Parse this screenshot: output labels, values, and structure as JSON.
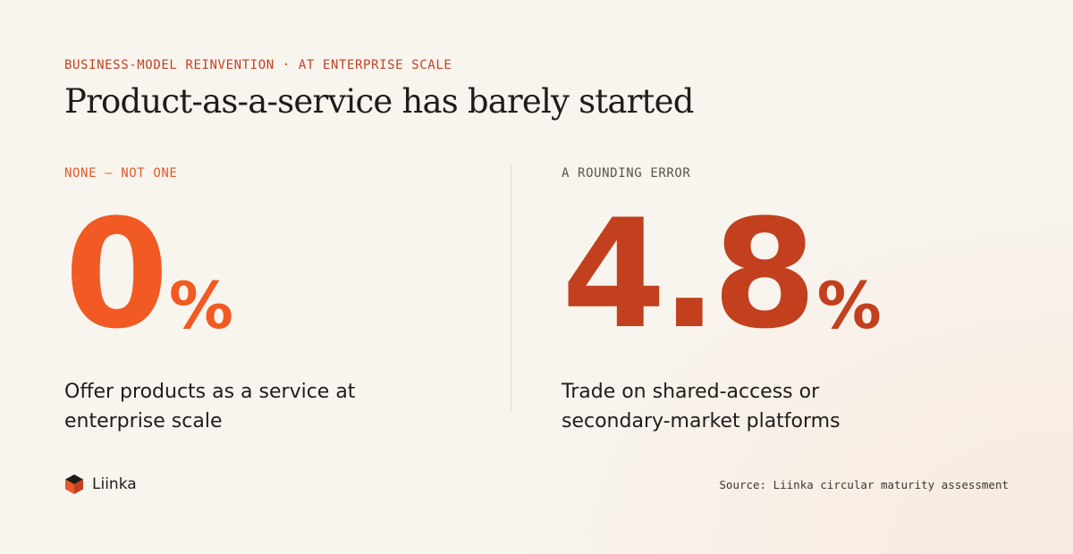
{
  "header": {
    "eyebrow": "BUSINESS-MODEL REINVENTION · AT ENTERPRISE SCALE",
    "title": "Product-as-a-service has barely started"
  },
  "stats": [
    {
      "kicker": "NONE — NOT ONE",
      "value": "0",
      "unit": "%",
      "description": "Offer products as a service at enterprise scale"
    },
    {
      "kicker": "A ROUNDING ERROR",
      "value": "4.8",
      "unit": "%",
      "description": "Trade on shared-access or secondary-market platforms"
    }
  ],
  "footer": {
    "brand": "Liinka",
    "source": "Source: Liinka circular maturity assessment"
  },
  "colors": {
    "background": "#f8f4ee",
    "accent_orange": "#f25a23",
    "accent_rust": "#c2401d",
    "eyebrow": "#c24226",
    "logo_orange": "#e8582a",
    "logo_dark": "#1f1c19"
  }
}
